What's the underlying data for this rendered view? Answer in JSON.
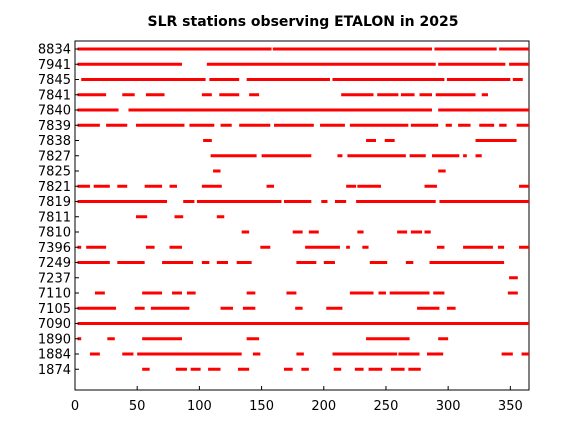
{
  "chart_data": {
    "type": "timeline",
    "title": "SLR stations observing ETALON in 2025",
    "xlabel": "",
    "ylabel": "",
    "xlim": [
      0,
      365
    ],
    "x_ticks": [
      0,
      50,
      100,
      150,
      200,
      250,
      300,
      350
    ],
    "grid": false,
    "bar_color": "#ff0000",
    "stations": [
      {
        "label": "8834",
        "segments": [
          [
            2,
            158
          ],
          [
            159,
            287
          ],
          [
            289,
            339
          ],
          [
            341,
            365
          ]
        ]
      },
      {
        "label": "7941",
        "segments": [
          [
            2,
            86
          ],
          [
            106,
            290
          ],
          [
            292,
            346
          ],
          [
            349,
            365
          ]
        ]
      },
      {
        "label": "7845",
        "segments": [
          [
            5,
            105
          ],
          [
            108,
            132
          ],
          [
            138,
            205
          ],
          [
            207,
            297
          ],
          [
            299,
            350
          ],
          [
            352,
            360
          ]
        ]
      },
      {
        "label": "7841",
        "segments": [
          [
            2,
            25
          ],
          [
            38,
            48
          ],
          [
            57,
            72
          ],
          [
            102,
            110
          ],
          [
            116,
            132
          ],
          [
            140,
            148
          ],
          [
            214,
            240
          ],
          [
            243,
            260
          ],
          [
            262,
            273
          ],
          [
            277,
            287
          ],
          [
            290,
            322
          ],
          [
            327,
            332
          ]
        ]
      },
      {
        "label": "7840",
        "segments": [
          [
            2,
            35
          ],
          [
            43,
            287
          ],
          [
            292,
            365
          ]
        ]
      },
      {
        "label": "7839",
        "segments": [
          [
            2,
            20
          ],
          [
            25,
            42
          ],
          [
            49,
            88
          ],
          [
            92,
            112
          ],
          [
            117,
            126
          ],
          [
            132,
            157
          ],
          [
            160,
            192
          ],
          [
            197,
            217
          ],
          [
            221,
            268
          ],
          [
            270,
            292
          ],
          [
            298,
            303
          ],
          [
            308,
            318
          ],
          [
            325,
            337
          ],
          [
            341,
            347
          ],
          [
            355,
            365
          ]
        ]
      },
      {
        "label": "7838",
        "segments": [
          [
            103,
            110
          ],
          [
            234,
            242
          ],
          [
            249,
            257
          ],
          [
            322,
            355
          ]
        ]
      },
      {
        "label": "7827",
        "segments": [
          [
            109,
            146
          ],
          [
            150,
            190
          ],
          [
            211,
            215
          ],
          [
            219,
            266
          ],
          [
            269,
            282
          ],
          [
            287,
            309
          ],
          [
            312,
            315
          ],
          [
            322,
            327
          ]
        ]
      },
      {
        "label": "7825",
        "segments": [
          [
            111,
            117
          ],
          [
            292,
            298
          ]
        ]
      },
      {
        "label": "7821",
        "segments": [
          [
            2,
            12
          ],
          [
            15,
            28
          ],
          [
            34,
            42
          ],
          [
            56,
            70
          ],
          [
            76,
            82
          ],
          [
            102,
            118
          ],
          [
            154,
            160
          ],
          [
            218,
            226
          ],
          [
            227,
            246
          ],
          [
            281,
            291
          ],
          [
            357,
            365
          ]
        ]
      },
      {
        "label": "7819",
        "segments": [
          [
            2,
            74
          ],
          [
            87,
            96
          ],
          [
            98,
            166
          ],
          [
            168,
            190
          ],
          [
            198,
            203
          ],
          [
            209,
            218
          ],
          [
            226,
            290
          ],
          [
            293,
            365
          ]
        ]
      },
      {
        "label": "7811",
        "segments": [
          [
            49,
            58
          ],
          [
            80,
            87
          ],
          [
            114,
            120
          ]
        ]
      },
      {
        "label": "7810",
        "segments": [
          [
            134,
            140
          ],
          [
            175,
            183
          ],
          [
            188,
            196
          ],
          [
            227,
            232
          ],
          [
            259,
            267
          ],
          [
            270,
            279
          ],
          [
            281,
            286
          ]
        ]
      },
      {
        "label": "7396",
        "segments": [
          [
            2,
            5
          ],
          [
            9,
            25
          ],
          [
            57,
            64
          ],
          [
            76,
            86
          ],
          [
            149,
            157
          ],
          [
            185,
            213
          ],
          [
            218,
            221
          ],
          [
            231,
            236
          ],
          [
            291,
            297
          ],
          [
            312,
            336
          ],
          [
            340,
            345
          ],
          [
            357,
            365
          ]
        ]
      },
      {
        "label": "7249",
        "segments": [
          [
            2,
            28
          ],
          [
            34,
            56
          ],
          [
            70,
            95
          ],
          [
            102,
            108
          ],
          [
            114,
            123
          ],
          [
            130,
            142
          ],
          [
            178,
            194
          ],
          [
            200,
            209
          ],
          [
            237,
            251
          ],
          [
            266,
            272
          ],
          [
            285,
            345
          ]
        ]
      },
      {
        "label": "7237",
        "segments": [
          [
            349,
            356
          ]
        ]
      },
      {
        "label": "7110",
        "segments": [
          [
            16,
            24
          ],
          [
            54,
            70
          ],
          [
            78,
            86
          ],
          [
            90,
            97
          ],
          [
            138,
            145
          ],
          [
            170,
            178
          ],
          [
            221,
            240
          ],
          [
            244,
            250
          ],
          [
            253,
            285
          ],
          [
            288,
            297
          ],
          [
            348,
            356
          ]
        ]
      },
      {
        "label": "7105",
        "segments": [
          [
            2,
            33
          ],
          [
            48,
            56
          ],
          [
            61,
            92
          ],
          [
            117,
            127
          ],
          [
            135,
            145
          ],
          [
            177,
            183
          ],
          [
            202,
            215
          ],
          [
            275,
            293
          ],
          [
            299,
            306
          ]
        ]
      },
      {
        "label": "7090",
        "segments": [
          [
            2,
            365
          ]
        ]
      },
      {
        "label": "1890",
        "segments": [
          [
            2,
            5
          ],
          [
            26,
            32
          ],
          [
            54,
            86
          ],
          [
            138,
            148
          ],
          [
            234,
            269
          ],
          [
            292,
            300
          ]
        ]
      },
      {
        "label": "1884",
        "segments": [
          [
            12,
            20
          ],
          [
            38,
            47
          ],
          [
            50,
            134
          ],
          [
            143,
            149
          ],
          [
            178,
            184
          ],
          [
            207,
            259
          ],
          [
            260,
            277
          ],
          [
            283,
            296
          ],
          [
            343,
            352
          ],
          [
            359,
            365
          ]
        ]
      },
      {
        "label": "1874",
        "segments": [
          [
            54,
            60
          ],
          [
            81,
            90
          ],
          [
            93,
            101
          ],
          [
            107,
            117
          ],
          [
            131,
            140
          ],
          [
            168,
            175
          ],
          [
            182,
            188
          ],
          [
            208,
            214
          ],
          [
            225,
            232
          ],
          [
            236,
            247
          ],
          [
            254,
            265
          ],
          [
            268,
            278
          ]
        ]
      }
    ]
  }
}
